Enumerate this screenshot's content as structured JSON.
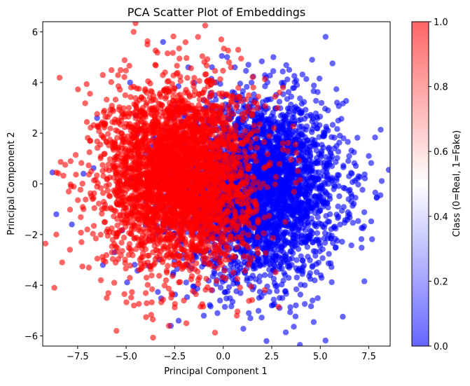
{
  "chart_data": {
    "type": "scatter",
    "title": "PCA Scatter Plot of Embeddings",
    "xlabel": "Principal Component 1",
    "ylabel": "Principal Component 2",
    "xlim": [
      -9.3,
      8.6
    ],
    "ylim": [
      -6.4,
      6.4
    ],
    "x_ticks": [
      -7.5,
      -5.0,
      -2.5,
      0.0,
      2.5,
      5.0,
      7.5
    ],
    "x_tick_labels": [
      "−7.5",
      "−5.0",
      "−2.5",
      "0.0",
      "2.5",
      "5.0",
      "7.5"
    ],
    "y_ticks": [
      -6,
      -4,
      -2,
      0,
      2,
      4,
      6
    ],
    "y_tick_labels": [
      "−6",
      "−4",
      "−2",
      "0",
      "2",
      "4",
      "6"
    ],
    "grid": false,
    "marker_alpha": 0.6,
    "series": [
      {
        "class_value": 0,
        "color": "#0000ff",
        "center": [
          1.8,
          -0.2
        ],
        "spread": [
          2.1,
          1.75
        ],
        "count": 3500,
        "points": [
          [
            7.9,
            -0.55
          ],
          [
            7.5,
            1.1
          ],
          [
            7.2,
            -1.75
          ],
          [
            6.9,
            0.2
          ],
          [
            6.6,
            -0.7
          ],
          [
            6.2,
            1.8
          ],
          [
            5.8,
            -2.5
          ],
          [
            5.4,
            2.9
          ],
          [
            4.6,
            -4.6
          ],
          [
            4.2,
            -4.0
          ],
          [
            3.8,
            3.9
          ],
          [
            3.4,
            4.5
          ],
          [
            2.9,
            -4.9
          ],
          [
            1.4,
            -5.3
          ],
          [
            0.2,
            5.0
          ],
          [
            -0.3,
            -5.1
          ],
          [
            -1.8,
            4.6
          ],
          [
            -2.3,
            -5.4
          ],
          [
            -2.7,
            -5.6
          ],
          [
            -3.1,
            5.6
          ],
          [
            -4.8,
            4.0
          ],
          [
            -5.6,
            -2.7
          ],
          [
            -8.6,
            -1.2
          ],
          [
            -7.8,
            -1.6
          ],
          [
            -7.2,
            0.4
          ],
          [
            -6.5,
            2.6
          ],
          [
            -6.2,
            -3.2
          ],
          [
            -8.8,
            0.45
          ],
          [
            0.6,
            4.6
          ],
          [
            2.5,
            -4.8
          ],
          [
            -1.0,
            -5.2
          ]
        ]
      },
      {
        "class_value": 1,
        "color": "#ff0000",
        "center": [
          -2.3,
          0.3
        ],
        "spread": [
          1.9,
          1.8
        ],
        "count": 3500,
        "points": [
          [
            -8.7,
            -4.1
          ],
          [
            -8.3,
            -3.1
          ],
          [
            -8.6,
            0.45
          ],
          [
            -8.6,
            -2.0
          ],
          [
            -7.9,
            -2.6
          ],
          [
            -7.3,
            -2.3
          ],
          [
            -7.2,
            -1.0
          ],
          [
            -6.3,
            -3.8
          ],
          [
            -6.0,
            -4.5
          ],
          [
            -5.5,
            -5.8
          ],
          [
            -4.2,
            3.4
          ],
          [
            -3.5,
            4.7
          ],
          [
            -2.8,
            -5.6
          ],
          [
            -1.3,
            5.8
          ],
          [
            -0.1,
            5.7
          ],
          [
            0.7,
            -5.2
          ],
          [
            2.8,
            3.0
          ],
          [
            3.2,
            -1.5
          ],
          [
            -4.6,
            -4.8
          ],
          [
            -3.0,
            4.4
          ],
          [
            -6.8,
            0.5
          ],
          [
            -7.0,
            -1.8
          ],
          [
            0.3,
            4.8
          ],
          [
            -1.9,
            -5.5
          ]
        ]
      }
    ],
    "colorbar": {
      "label": "Class (0=Real, 1=Fake)",
      "colormap": "bwr",
      "range": [
        0.0,
        1.0
      ],
      "ticks": [
        0.0,
        0.2,
        0.4,
        0.6,
        0.8,
        1.0
      ],
      "tick_labels": [
        "0.0",
        "0.2",
        "0.4",
        "0.6",
        "0.8",
        "1.0"
      ]
    }
  }
}
